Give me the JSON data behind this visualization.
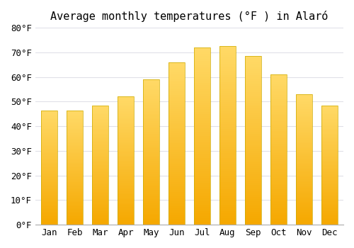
{
  "title": "Average monthly temperatures (°F ) in Alaró",
  "months": [
    "Jan",
    "Feb",
    "Mar",
    "Apr",
    "May",
    "Jun",
    "Jul",
    "Aug",
    "Sep",
    "Oct",
    "Nov",
    "Dec"
  ],
  "values": [
    46.5,
    46.5,
    48.5,
    52.0,
    59.0,
    66.0,
    72.0,
    72.5,
    68.5,
    61.0,
    53.0,
    48.5
  ],
  "bar_color_bottom": "#F5A800",
  "bar_color_top": "#FFD966",
  "ylim": [
    0,
    80
  ],
  "yticks": [
    0,
    10,
    20,
    30,
    40,
    50,
    60,
    70,
    80
  ],
  "ytick_labels": [
    "0°F",
    "10°F",
    "20°F",
    "30°F",
    "40°F",
    "50°F",
    "60°F",
    "70°F",
    "80°F"
  ],
  "background_color": "#FFFFFF",
  "grid_color": "#E0E0E8",
  "bar_edge_color": "#CCAA00",
  "title_fontsize": 11,
  "tick_fontsize": 9,
  "font_family": "monospace"
}
